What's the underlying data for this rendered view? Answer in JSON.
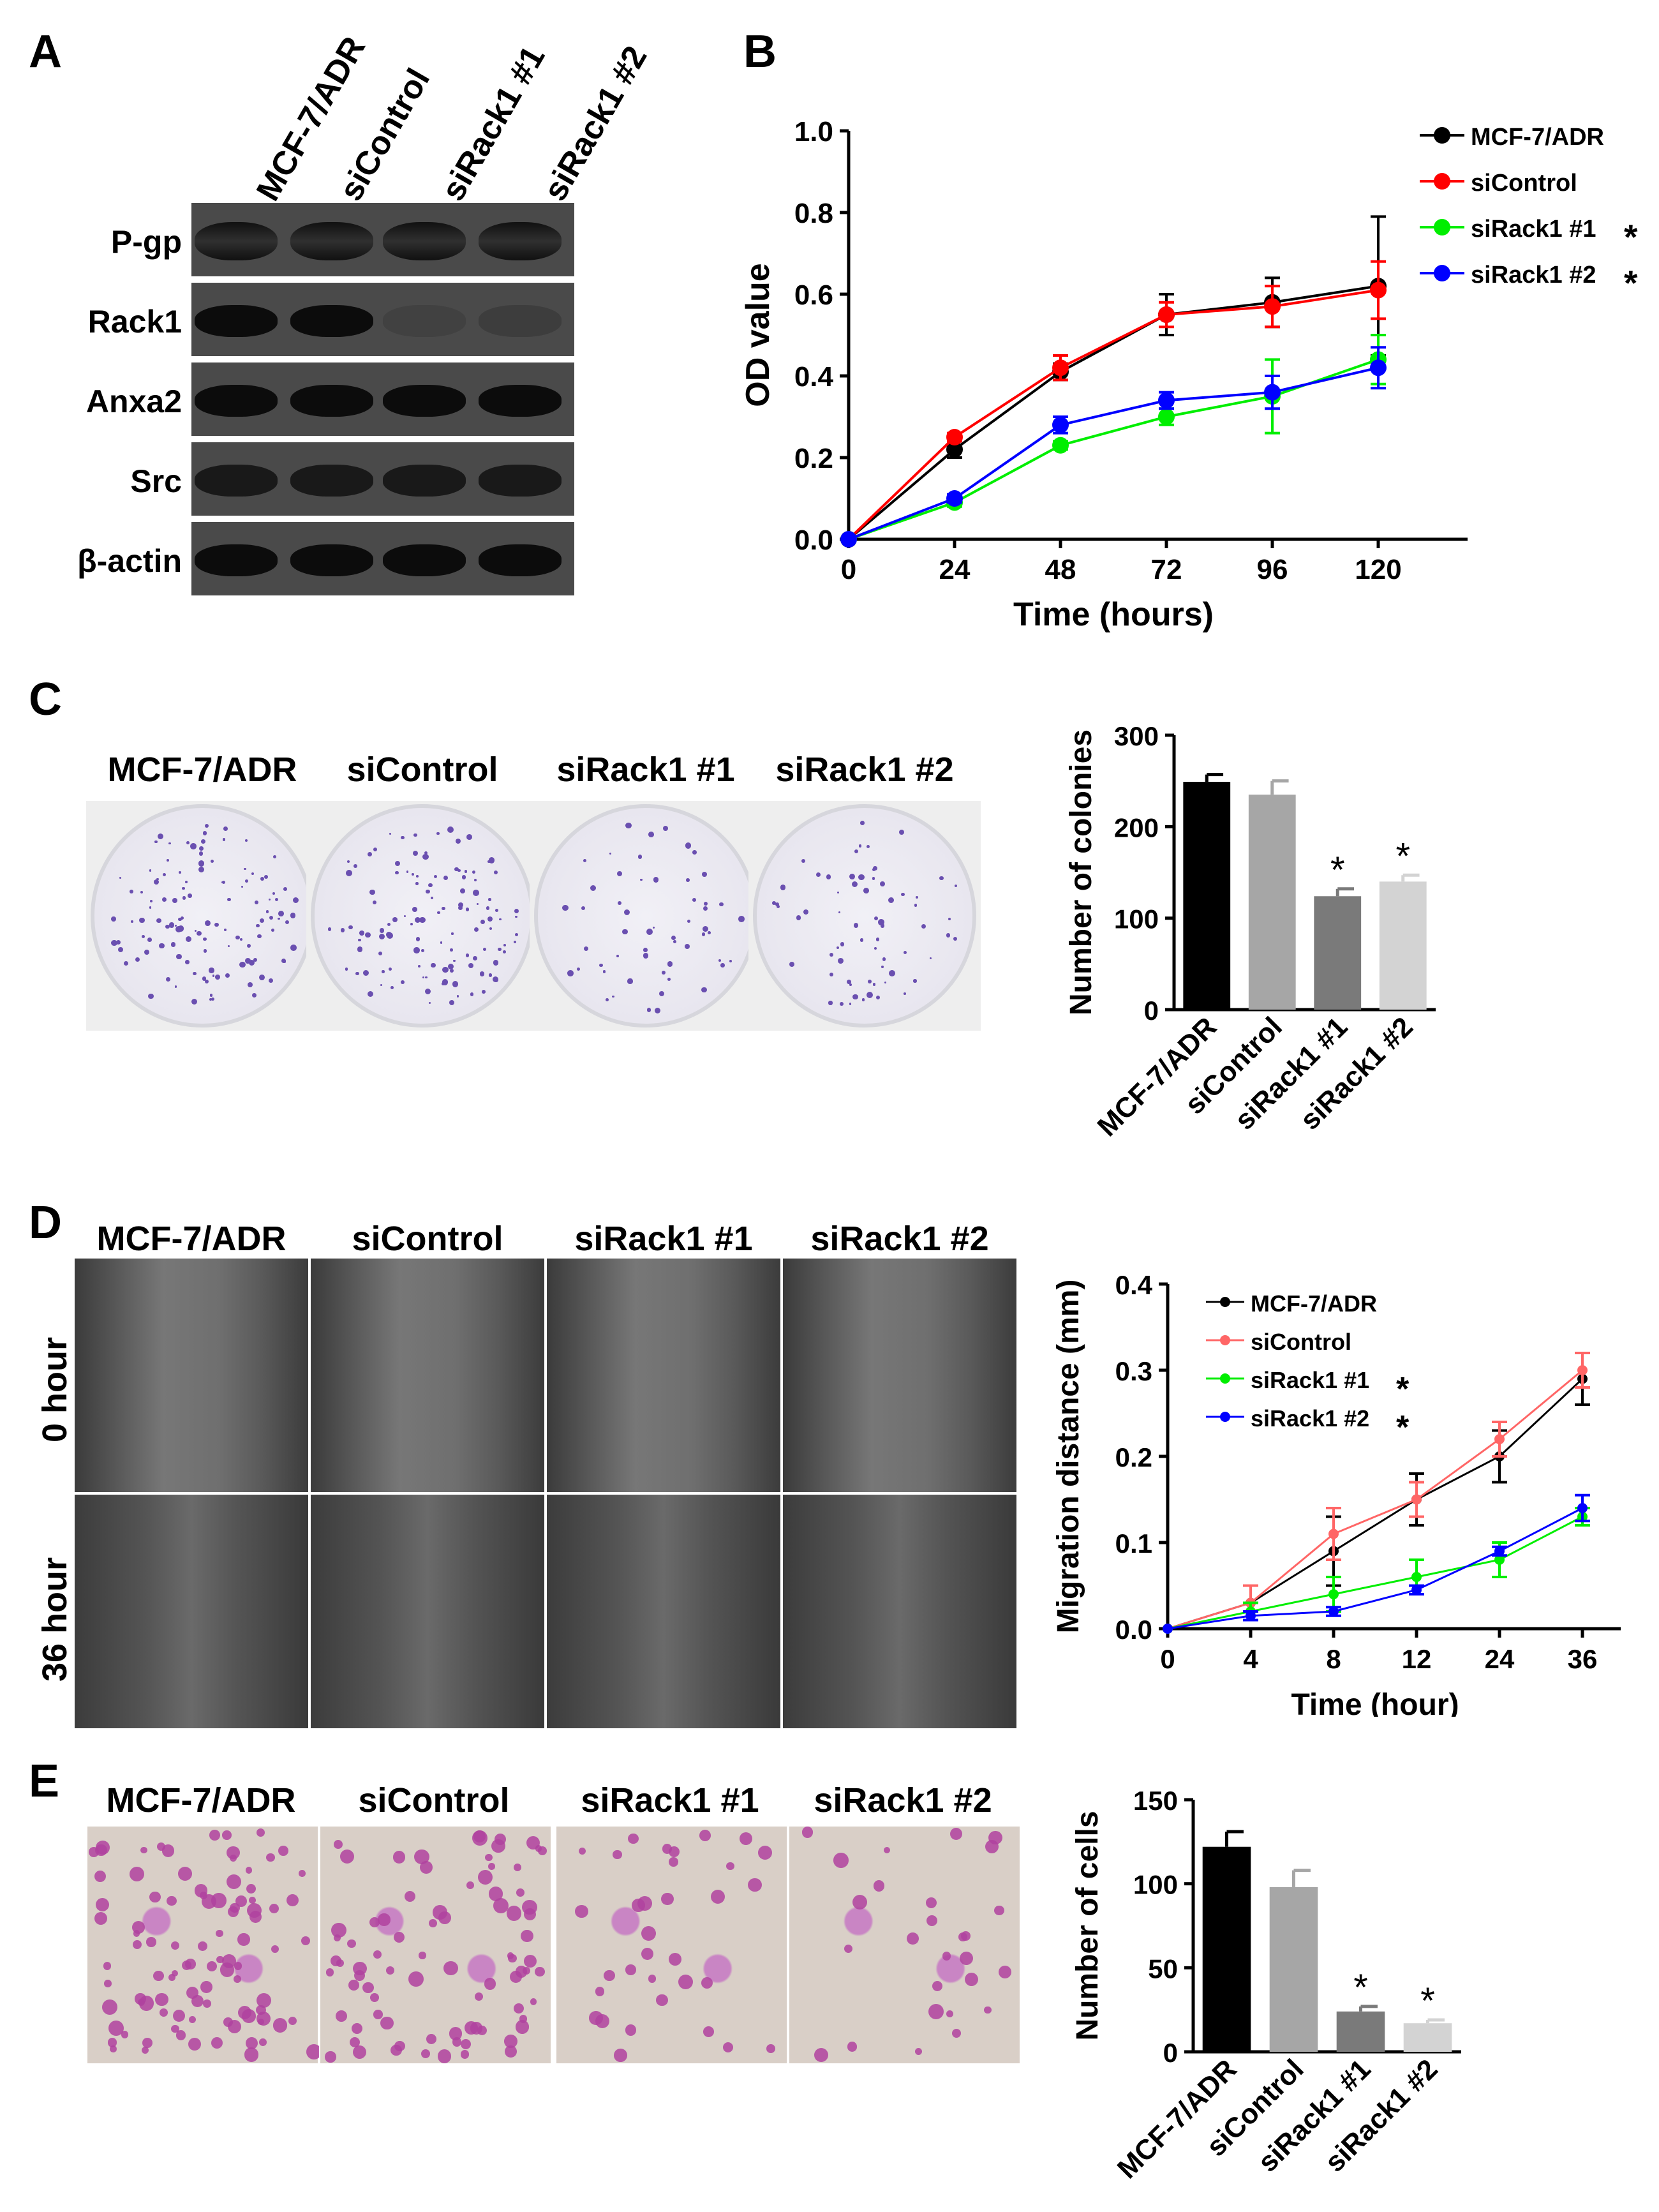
{
  "panels": {
    "a": "A",
    "b": "B",
    "c": "C",
    "d": "D",
    "e": "E"
  },
  "groups": [
    "MCF-7/ADR",
    "siControl",
    "siRack1 #1",
    "siRack1 #2"
  ],
  "blot_rows": [
    "P-gp",
    "Rack1",
    "Anxa2",
    "Src",
    "β-actin"
  ],
  "blot_band_intensity": [
    [
      1,
      1,
      1,
      1
    ],
    [
      1,
      1,
      0.15,
      0.2
    ],
    [
      1,
      1,
      1,
      1
    ],
    [
      0.8,
      0.8,
      0.8,
      0.8
    ],
    [
      1,
      1,
      1,
      1
    ]
  ],
  "wound_rows": [
    "0 hour",
    "36 hour"
  ],
  "legend_star": "*",
  "chart_data": [
    {
      "id": "B",
      "type": "line",
      "xlabel": "Time (hours)",
      "ylabel": "OD value",
      "x": [
        0,
        24,
        48,
        72,
        96,
        120
      ],
      "x_ticks": [
        "0",
        "24",
        "48",
        "72",
        "96",
        "120"
      ],
      "y_ticks": [
        "0.0",
        "0.2",
        "0.4",
        "0.6",
        "0.8",
        "1.0"
      ],
      "ylim": [
        0,
        1.0
      ],
      "legend_placement": "top-right",
      "series": [
        {
          "name": "MCF-7/ADR",
          "color": "#000000",
          "values": [
            0.0,
            0.22,
            0.41,
            0.55,
            0.58,
            0.62
          ],
          "err": [
            0,
            0.02,
            0.02,
            0.05,
            0.06,
            0.17
          ],
          "star": false
        },
        {
          "name": "siControl",
          "color": "#ff0000",
          "values": [
            0.0,
            0.25,
            0.42,
            0.55,
            0.57,
            0.61
          ],
          "err": [
            0,
            0.01,
            0.03,
            0.03,
            0.05,
            0.07
          ],
          "star": false
        },
        {
          "name": "siRack1 #1",
          "color": "#00ee00",
          "values": [
            0.0,
            0.09,
            0.23,
            0.3,
            0.35,
            0.44
          ],
          "err": [
            0,
            0.01,
            0.01,
            0.02,
            0.09,
            0.06
          ],
          "star": true
        },
        {
          "name": "siRack1 #2",
          "color": "#0000ff",
          "values": [
            0.0,
            0.1,
            0.28,
            0.34,
            0.36,
            0.42
          ],
          "err": [
            0,
            0.01,
            0.02,
            0.02,
            0.04,
            0.05
          ],
          "star": true
        }
      ]
    },
    {
      "id": "C",
      "type": "bar",
      "ylabel": "Number of colonies",
      "categories": [
        "MCF-7/ADR",
        "siControl",
        "siRack1 #1",
        "siRack1 #2"
      ],
      "values": [
        249,
        235,
        124,
        140
      ],
      "err": [
        8,
        15,
        8,
        7
      ],
      "colors": [
        "#000000",
        "#a6a6a6",
        "#7a7a7a",
        "#d3d3d3"
      ],
      "star": [
        false,
        false,
        true,
        true
      ],
      "y_ticks": [
        "0",
        "100",
        "200",
        "300"
      ],
      "ylim": [
        0,
        300
      ]
    },
    {
      "id": "D",
      "type": "line",
      "xlabel": "Time (hour)",
      "ylabel": "Migration distance (mm)",
      "x": [
        0,
        4,
        8,
        12,
        24,
        36
      ],
      "x_ticks": [
        "0",
        "4",
        "8",
        "12",
        "24",
        "36"
      ],
      "y_ticks": [
        "0.0",
        "0.1",
        "0.2",
        "0.3",
        "0.4"
      ],
      "ylim": [
        0,
        0.4
      ],
      "legend_placement": "top-left",
      "series": [
        {
          "name": "MCF-7/ADR",
          "color": "#000000",
          "values": [
            0.0,
            0.03,
            0.09,
            0.15,
            0.2,
            0.29
          ],
          "err": [
            0,
            0.02,
            0.04,
            0.03,
            0.03,
            0.03
          ],
          "star": false
        },
        {
          "name": "siControl",
          "color": "#ff6666",
          "values": [
            0.0,
            0.03,
            0.11,
            0.15,
            0.22,
            0.3
          ],
          "err": [
            0,
            0.02,
            0.03,
            0.02,
            0.02,
            0.02
          ],
          "star": false
        },
        {
          "name": "siRack1 #1",
          "color": "#00ee00",
          "values": [
            0.0,
            0.02,
            0.04,
            0.06,
            0.08,
            0.13
          ],
          "err": [
            0,
            0.01,
            0.02,
            0.02,
            0.02,
            0.01
          ],
          "star": true
        },
        {
          "name": "siRack1 #2",
          "color": "#0000ff",
          "values": [
            0.0,
            0.015,
            0.02,
            0.045,
            0.09,
            0.14
          ],
          "err": [
            0,
            0.005,
            0.005,
            0.005,
            0.005,
            0.015
          ],
          "star": true
        }
      ]
    },
    {
      "id": "E",
      "type": "bar",
      "ylabel": "Number of cells",
      "categories": [
        "MCF-7/ADR",
        "siControl",
        "siRack1 #1",
        "siRack1 #2"
      ],
      "values": [
        122,
        98,
        24,
        17
      ],
      "err": [
        9,
        10,
        3,
        2
      ],
      "colors": [
        "#000000",
        "#a6a6a6",
        "#7a7a7a",
        "#d3d3d3"
      ],
      "star": [
        false,
        false,
        true,
        true
      ],
      "y_ticks": [
        "0",
        "50",
        "100",
        "150"
      ],
      "ylim": [
        0,
        150
      ]
    }
  ]
}
